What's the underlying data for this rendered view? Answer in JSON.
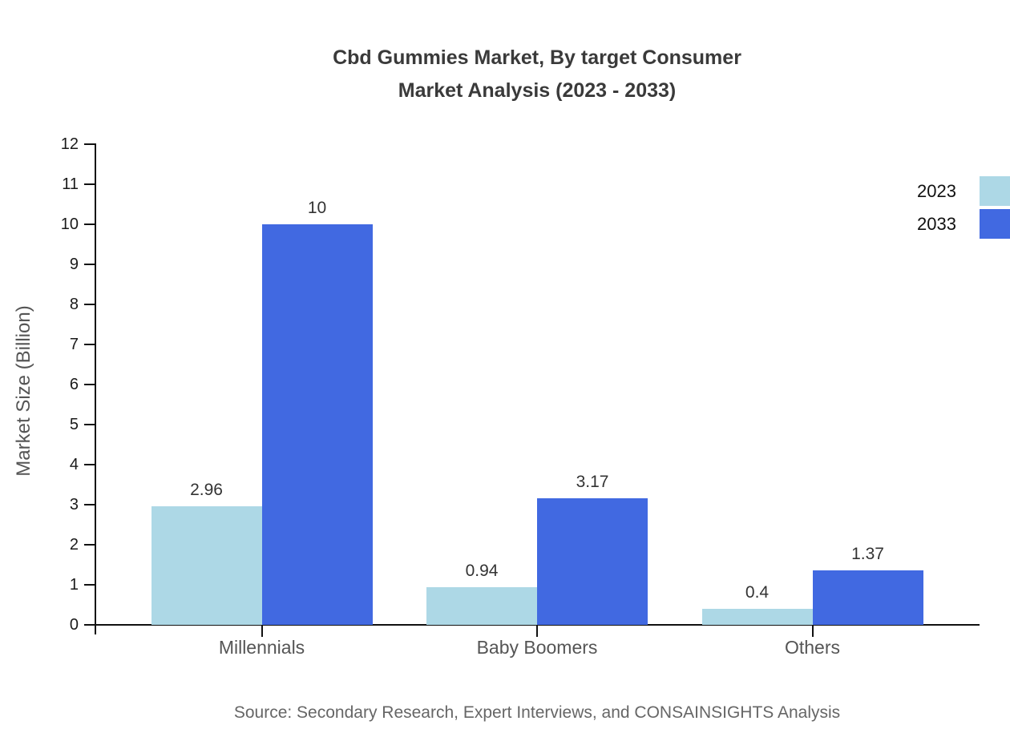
{
  "title": {
    "line1": "Cbd Gummies Market, By target Consumer",
    "line2": "Market Analysis (2023 - 2033)"
  },
  "source": "Source: Secondary Research, Expert Interviews, and CONSAINSIGHTS Analysis",
  "chart_data": {
    "type": "bar",
    "categories": [
      "Millennials",
      "Baby Boomers",
      "Others"
    ],
    "series": [
      {
        "name": "2023",
        "color": "#ADD8E6",
        "values": [
          2.96,
          0.94,
          0.4
        ],
        "labels": [
          "2.96",
          "0.94",
          "0.4"
        ]
      },
      {
        "name": "2033",
        "color": "#4169E1",
        "values": [
          10,
          3.17,
          1.37
        ],
        "labels": [
          "10",
          "3.17",
          "1.37"
        ]
      }
    ],
    "title": "Cbd Gummies Market, By target Consumer Market Analysis (2023 - 2033)",
    "xlabel": "",
    "ylabel": "Market Size (Billion)",
    "ylim": [
      0,
      12
    ],
    "ytick_step": 1,
    "grid": false,
    "legend_position": "top-right"
  },
  "colors": {
    "background": "#ffffff",
    "axis": "#111111",
    "title_text": "#3a3a3a",
    "tick_text": "#1a1a1a",
    "category_text": "#555555",
    "value_text": "#333333",
    "muted_text": "#666666",
    "series_2023": "#ADD8E6",
    "series_2033": "#4169E1"
  }
}
